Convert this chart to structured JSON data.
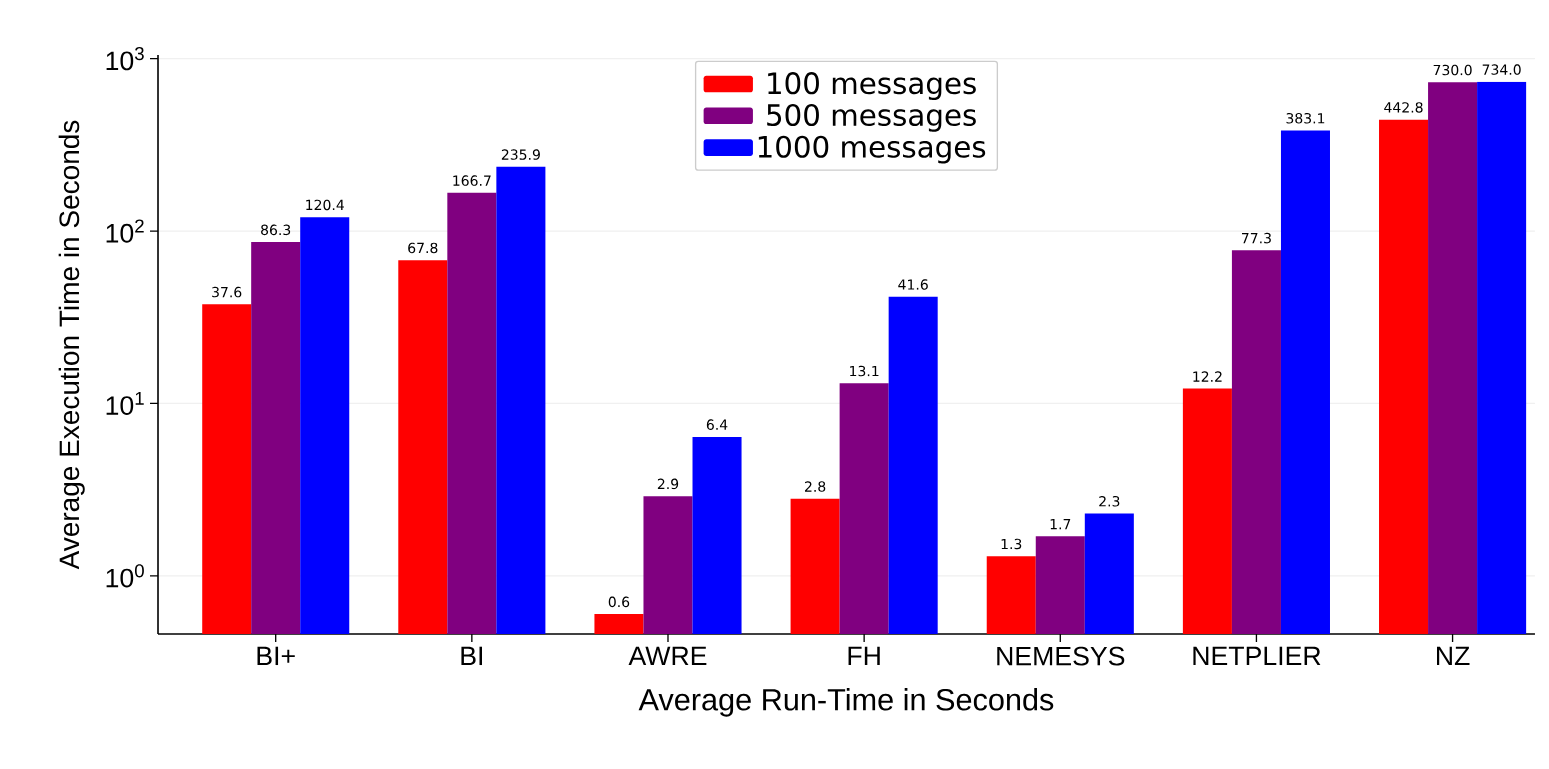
{
  "chart_data": {
    "type": "bar",
    "xlabel": "Average Run-Time in Seconds",
    "ylabel": "Average Execution Time in Seconds",
    "categories": [
      "BI+",
      "BI",
      "AWRE",
      "FH",
      "NEMESYS",
      "NETPLIER",
      "NZ"
    ],
    "series": [
      {
        "name": "100 messages",
        "color": "#ff0000",
        "values": [
          37.6,
          67.8,
          0.6,
          2.8,
          1.3,
          12.2,
          442.8
        ],
        "value_labels": [
          "37.6",
          "67.8",
          "0.6",
          "2.8",
          "1.3",
          "12.2",
          "442.8"
        ]
      },
      {
        "name": "500 messages",
        "color": "#800080",
        "values": [
          86.3,
          166.7,
          2.9,
          13.1,
          1.7,
          77.3,
          730.0
        ],
        "value_labels": [
          "86.3",
          "166.7",
          "2.9",
          "13.1",
          "1.7",
          "77.3",
          "730.0"
        ]
      },
      {
        "name": "1000 messages",
        "color": "#0000ff",
        "values": [
          120.4,
          235.9,
          6.4,
          41.6,
          2.3,
          383.1,
          734.0
        ],
        "value_labels": [
          "120.4",
          "235.9",
          "6.4",
          "41.6",
          "2.3",
          "383.1",
          "734.0"
        ]
      }
    ],
    "log": "y",
    "ylim": [
      0.46,
      1050
    ],
    "yticks": [
      {
        "value": 1,
        "label": "10$^{0}$"
      },
      {
        "value": 10,
        "label": "10$^{1}$"
      },
      {
        "value": 100,
        "label": "10$^{2}$"
      },
      {
        "value": 1000,
        "label": "10$^{3}$"
      }
    ],
    "grid": "y",
    "legend": "top"
  }
}
